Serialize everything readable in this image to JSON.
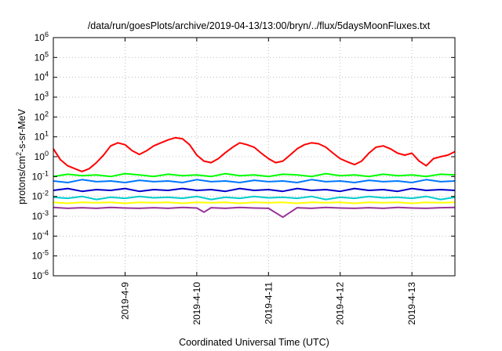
{
  "chart_data": {
    "type": "line",
    "title": "/data/run/goesPlots/archive/2019-04-13/13:00/bryn/../flux/5daysMoonFluxes.txt",
    "xlabel": "Coordinated Universal Time (UTC)",
    "ylabel": "protons/cm²-s-sr-MeV",
    "ylabel_parts": {
      "pre": "protons/cm",
      "sup": "2",
      "post": "-s-sr-MeV"
    },
    "yscale": "log",
    "ylim": [
      1e-06,
      1000000.0
    ],
    "xlim_days": [
      0,
      5.6
    ],
    "grid": true,
    "legend": "none",
    "x_ticks": [
      {
        "label": "2019-4-9",
        "day": 1
      },
      {
        "label": "2019-4-10",
        "day": 2
      },
      {
        "label": "2019-4-11",
        "day": 3
      },
      {
        "label": "2019-4-12",
        "day": 4
      },
      {
        "label": "2019-4-13",
        "day": 5
      }
    ],
    "y_ticks": [
      {
        "base": "10",
        "exp": "-6",
        "value": 1e-06
      },
      {
        "base": "10",
        "exp": "-5",
        "value": 1e-05
      },
      {
        "base": "10",
        "exp": "-4",
        "value": 0.0001
      },
      {
        "base": "10",
        "exp": "-3",
        "value": 0.001
      },
      {
        "base": "10",
        "exp": "-2",
        "value": 0.01
      },
      {
        "base": "10",
        "exp": "-1",
        "value": 0.1
      },
      {
        "base": "10",
        "exp": "0",
        "value": 1
      },
      {
        "base": "10",
        "exp": "1",
        "value": 10
      },
      {
        "base": "10",
        "exp": "2",
        "value": 100
      },
      {
        "base": "10",
        "exp": "3",
        "value": 1000
      },
      {
        "base": "10",
        "exp": "4",
        "value": 10000
      },
      {
        "base": "10",
        "exp": "5",
        "value": 100000
      },
      {
        "base": "10",
        "exp": "6",
        "value": 1000000
      }
    ],
    "series": [
      {
        "color": "#ff0000",
        "x": [
          0,
          0.1,
          0.2,
          0.3,
          0.4,
          0.5,
          0.6,
          0.7,
          0.8,
          0.9,
          1.0,
          1.1,
          1.2,
          1.3,
          1.4,
          1.5,
          1.6,
          1.7,
          1.8,
          1.9,
          2.0,
          2.1,
          2.2,
          2.3,
          2.4,
          2.5,
          2.6,
          2.7,
          2.8,
          2.9,
          3.0,
          3.1,
          3.2,
          3.3,
          3.4,
          3.5,
          3.6,
          3.7,
          3.8,
          3.9,
          4.0,
          4.1,
          4.2,
          4.3,
          4.4,
          4.5,
          4.6,
          4.7,
          4.8,
          4.9,
          5.0,
          5.1,
          5.2,
          5.3,
          5.4,
          5.5,
          5.6
        ],
        "y": [
          2.5,
          0.7,
          0.35,
          0.25,
          0.18,
          0.25,
          0.5,
          1.2,
          3.5,
          5,
          4,
          2,
          1.3,
          2,
          3.5,
          5,
          7,
          9,
          8,
          4,
          1.2,
          0.6,
          0.5,
          0.8,
          1.6,
          3,
          5,
          4,
          3,
          1.5,
          0.8,
          0.5,
          0.6,
          1.2,
          2.5,
          4,
          5,
          4.5,
          3,
          1.5,
          0.8,
          0.55,
          0.4,
          0.6,
          1.5,
          3,
          3.5,
          2.5,
          1.5,
          1.2,
          1.5,
          0.6,
          0.35,
          0.8,
          1,
          1.2,
          1.8
        ]
      },
      {
        "color": "#00ff00",
        "x": [
          0,
          0.2,
          0.4,
          0.6,
          0.8,
          1.0,
          1.2,
          1.4,
          1.6,
          1.8,
          2.0,
          2.2,
          2.4,
          2.6,
          2.8,
          3.0,
          3.2,
          3.4,
          3.6,
          3.8,
          4.0,
          4.2,
          4.4,
          4.6,
          4.8,
          5.0,
          5.2,
          5.4,
          5.6
        ],
        "y": [
          0.1,
          0.13,
          0.11,
          0.12,
          0.1,
          0.14,
          0.12,
          0.1,
          0.13,
          0.11,
          0.12,
          0.1,
          0.14,
          0.11,
          0.12,
          0.1,
          0.13,
          0.12,
          0.1,
          0.14,
          0.11,
          0.12,
          0.1,
          0.13,
          0.11,
          0.12,
          0.1,
          0.13,
          0.12
        ]
      },
      {
        "color": "#0077ff",
        "x": [
          0,
          0.2,
          0.4,
          0.6,
          0.8,
          1.0,
          1.2,
          1.4,
          1.6,
          1.8,
          2.0,
          2.2,
          2.4,
          2.6,
          2.8,
          3.0,
          3.2,
          3.4,
          3.6,
          3.8,
          4.0,
          4.2,
          4.4,
          4.6,
          4.8,
          5.0,
          5.2,
          5.4,
          5.6
        ],
        "y": [
          0.06,
          0.05,
          0.07,
          0.055,
          0.06,
          0.05,
          0.065,
          0.055,
          0.06,
          0.05,
          0.07,
          0.055,
          0.06,
          0.05,
          0.065,
          0.055,
          0.06,
          0.05,
          0.07,
          0.055,
          0.06,
          0.05,
          0.065,
          0.055,
          0.06,
          0.05,
          0.07,
          0.055,
          0.06
        ]
      },
      {
        "color": "#0000cc",
        "x": [
          0,
          0.2,
          0.4,
          0.6,
          0.8,
          1.0,
          1.2,
          1.4,
          1.6,
          1.8,
          2.0,
          2.2,
          2.4,
          2.6,
          2.8,
          3.0,
          3.2,
          3.4,
          3.6,
          3.8,
          4.0,
          4.2,
          4.4,
          4.6,
          4.8,
          5.0,
          5.2,
          5.4,
          5.6
        ],
        "y": [
          0.02,
          0.025,
          0.018,
          0.022,
          0.02,
          0.025,
          0.018,
          0.022,
          0.02,
          0.025,
          0.02,
          0.022,
          0.018,
          0.025,
          0.02,
          0.022,
          0.018,
          0.025,
          0.02,
          0.022,
          0.018,
          0.025,
          0.02,
          0.022,
          0.018,
          0.025,
          0.02,
          0.022,
          0.02
        ]
      },
      {
        "color": "#00cccc",
        "x": [
          0,
          0.2,
          0.4,
          0.6,
          0.8,
          1.0,
          1.2,
          1.4,
          1.6,
          1.8,
          2.0,
          2.2,
          2.4,
          2.6,
          2.8,
          3.0,
          3.2,
          3.4,
          3.6,
          3.8,
          4.0,
          4.2,
          4.4,
          4.6,
          4.8,
          5.0,
          5.2,
          5.4,
          5.6
        ],
        "y": [
          0.009,
          0.008,
          0.01,
          0.007,
          0.009,
          0.008,
          0.01,
          0.0085,
          0.009,
          0.008,
          0.01,
          0.007,
          0.009,
          0.008,
          0.01,
          0.0085,
          0.009,
          0.008,
          0.01,
          0.007,
          0.009,
          0.008,
          0.01,
          0.0085,
          0.009,
          0.008,
          0.01,
          0.007,
          0.009
        ]
      },
      {
        "color": "#ffff00",
        "x": [
          0,
          0.2,
          0.4,
          0.6,
          0.8,
          1.0,
          1.2,
          1.4,
          1.6,
          1.8,
          2.0,
          2.2,
          2.4,
          2.6,
          2.8,
          3.0,
          3.2,
          3.4,
          3.6,
          3.8,
          4.0,
          4.2,
          4.4,
          4.6,
          4.8,
          5.0,
          5.2,
          5.4,
          5.6
        ],
        "y": [
          0.005,
          0.0045,
          0.005,
          0.0048,
          0.005,
          0.0045,
          0.005,
          0.0048,
          0.005,
          0.0045,
          0.005,
          0.0048,
          0.005,
          0.0045,
          0.005,
          0.0048,
          0.005,
          0.0045,
          0.005,
          0.0048,
          0.005,
          0.0045,
          0.005,
          0.0048,
          0.005,
          0.0045,
          0.005,
          0.0048,
          0.005
        ]
      },
      {
        "color": "#993399",
        "x": [
          0,
          0.2,
          0.4,
          0.6,
          0.8,
          1.0,
          1.2,
          1.4,
          1.6,
          1.8,
          2.0,
          2.1,
          2.2,
          2.4,
          2.6,
          2.8,
          3.0,
          3.2,
          3.4,
          3.6,
          3.8,
          4.0,
          4.2,
          4.4,
          4.6,
          4.8,
          5.0,
          5.2,
          5.4,
          5.6
        ],
        "y": [
          0.0028,
          0.0025,
          0.0027,
          0.0025,
          0.0028,
          0.0026,
          0.0025,
          0.0027,
          0.0025,
          0.0028,
          0.0026,
          0.0016,
          0.0027,
          0.0025,
          0.0028,
          0.0026,
          0.0025,
          0.0009,
          0.0027,
          0.0025,
          0.0028,
          0.0026,
          0.0025,
          0.0027,
          0.0025,
          0.0028,
          0.0026,
          0.0025,
          0.0027,
          0.0028
        ]
      }
    ]
  }
}
